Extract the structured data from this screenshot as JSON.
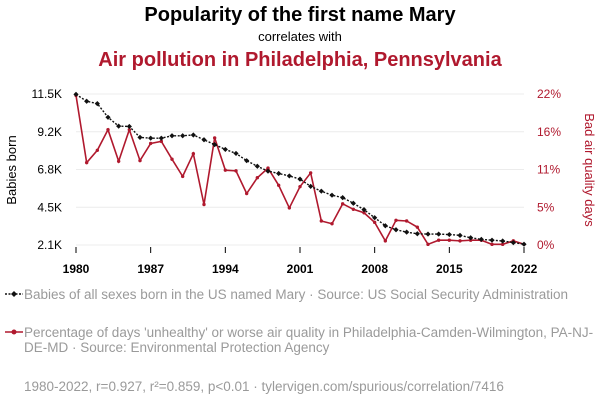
{
  "title": "Popularity of the first name Mary",
  "subtitle": "correlates with",
  "title2": "Air pollution in Philadelphia, Pennsylvania",
  "colors": {
    "series1": "#111111",
    "series2": "#b0192e",
    "legend_text": "#9a9a9a"
  },
  "chart_data": {
    "type": "line",
    "x": [
      1980,
      1981,
      1982,
      1983,
      1984,
      1985,
      1986,
      1987,
      1988,
      1989,
      1990,
      1991,
      1992,
      1993,
      1994,
      1995,
      1996,
      1997,
      1998,
      1999,
      2000,
      2001,
      2002,
      2003,
      2004,
      2005,
      2006,
      2007,
      2008,
      2009,
      2010,
      2011,
      2012,
      2013,
      2014,
      2015,
      2016,
      2017,
      2018,
      2019,
      2020,
      2021,
      2022
    ],
    "xlim": [
      1980,
      2022
    ],
    "xticks": [
      "1980",
      "1987",
      "1994",
      "2001",
      "2008",
      "2015",
      "2022"
    ],
    "series": [
      {
        "name": "Babies of all sexes born in the US named Mary",
        "axis": "left",
        "ylabel": "Babies born",
        "ylim": [
          2100,
          11500
        ],
        "yticks": [
          "11.5K",
          "9.2K",
          "6.8K",
          "4.5K",
          "2.1K"
        ],
        "values": [
          11480,
          11050,
          10900,
          10050,
          9500,
          9480,
          8800,
          8750,
          8750,
          8900,
          8900,
          8950,
          8650,
          8350,
          8050,
          7800,
          7350,
          7000,
          6700,
          6550,
          6400,
          6200,
          5750,
          5450,
          5200,
          5050,
          4700,
          4300,
          3800,
          3300,
          3050,
          2900,
          2800,
          2780,
          2780,
          2750,
          2700,
          2550,
          2450,
          2400,
          2350,
          2250,
          2150
        ]
      },
      {
        "name": "Percentage of days 'unhealthy' or worse air quality",
        "axis": "right",
        "ylabel": "Bad air quality days",
        "ylim": [
          0,
          22
        ],
        "yticks": [
          "22%",
          "16%",
          "11%",
          "5%",
          "0%"
        ],
        "values": [
          21.8,
          12,
          13.8,
          16.8,
          12.2,
          16.8,
          12.3,
          14.8,
          15.1,
          12.5,
          10,
          13.3,
          5.9,
          15.6,
          10.9,
          10.8,
          7.5,
          9.8,
          11.2,
          8.7,
          5.4,
          8.5,
          10.5,
          3.5,
          3.1,
          6,
          5.2,
          4.7,
          3.3,
          0.6,
          3.6,
          3.5,
          2.6,
          0.1,
          0.7,
          0.7,
          0.6,
          0.7,
          0.7,
          0.1,
          0.1,
          0.6,
          0.1
        ]
      }
    ]
  },
  "legend": [
    {
      "text": "Babies of all sexes born in the US named Mary · Source: US Social Security Administration"
    },
    {
      "text": "Percentage of days 'unhealthy' or worse air quality in Philadelphia-Camden-Wilmington, PA-NJ-DE-MD · Source: Environmental Protection Agency"
    }
  ],
  "footer": "1980-2022, r=0.927, r²=0.859, p<0.01 · tylervigen.com/spurious/correlation/7416"
}
